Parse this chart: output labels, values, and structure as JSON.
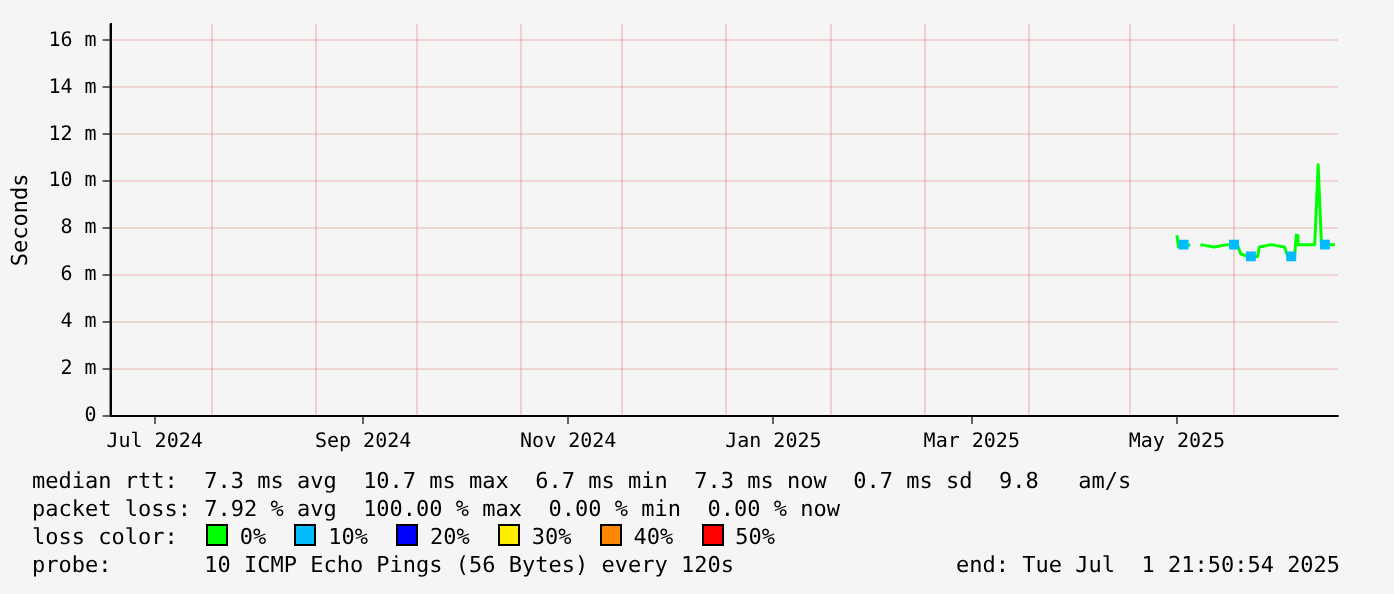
{
  "chart_data": {
    "type": "line",
    "ylabel": "Seconds",
    "legend_title": "loss color:",
    "legend": "bottom",
    "grid": true,
    "marker": "none",
    "line_style": "solid",
    "xlim": [
      "2024-07-01T21:50",
      "2025-07-01T21:50"
    ],
    "xticks": [
      {
        "value": "2024-07-15",
        "label": "Jul 2024"
      },
      {
        "value": "2024-09-15",
        "label": "Sep 2024"
      },
      {
        "value": "2024-11-15",
        "label": "Nov 2024"
      },
      {
        "value": "2025-01-15",
        "label": "Jan 2025"
      },
      {
        "value": "2025-03-15",
        "label": "Mar 2025"
      },
      {
        "value": "2025-05-15",
        "label": "May 2025"
      },
      {
        "value": "2024-08-01",
        "label": null
      },
      {
        "value": "2024-09-01",
        "label": null
      },
      {
        "value": "2024-10-01",
        "label": null
      },
      {
        "value": "2024-11-01",
        "label": null
      },
      {
        "value": "2024-12-01",
        "label": null
      },
      {
        "value": "2025-01-01",
        "label": null
      },
      {
        "value": "2025-02-01",
        "label": null
      },
      {
        "value": "2025-03-01",
        "label": null
      },
      {
        "value": "2025-04-01",
        "label": null
      },
      {
        "value": "2025-05-01",
        "label": null
      },
      {
        "value": "2025-06-01",
        "label": null
      }
    ],
    "ylim": [
      0,
      16.7
    ],
    "yticks": [
      0,
      {
        "value": 2,
        "label": "2 m"
      },
      {
        "value": 4,
        "label": "4 m"
      },
      {
        "value": 6,
        "label": "6 m"
      },
      {
        "value": 8,
        "label": "8 m"
      },
      {
        "value": 10,
        "label": "10 m"
      },
      {
        "value": 12,
        "label": "12 m"
      },
      {
        "value": 14,
        "label": "14 m"
      },
      {
        "value": 16,
        "label": "16 m"
      }
    ],
    "series": [
      {
        "name": "0%",
        "color": "#00ff00",
        "x": [
          "2025-05-15T00:00",
          "2025-05-15T12:00",
          "2025-05-17",
          "2025-05-19",
          "2025-05-20",
          "2025-05-22",
          "2025-05-26",
          "2025-05-30",
          "2025-06-02",
          "2025-06-03",
          "2025-06-05",
          "2025-06-08",
          "2025-06-08T12:00",
          "2025-06-12",
          "2025-06-16",
          "2025-06-17",
          "2025-06-19",
          "2025-06-19T12:00",
          "2025-06-20",
          "2025-06-25",
          "2025-06-26",
          "2025-06-27",
          "2025-07-01"
        ],
        "values": [
          7.7,
          7.2,
          7.2,
          7.3,
          null,
          7.3,
          7.2,
          7.3,
          7.3,
          6.9,
          6.8,
          6.8,
          7.2,
          7.3,
          7.2,
          6.8,
          6.8,
          7.7,
          7.3,
          7.3,
          10.7,
          7.3,
          7.3
        ]
      },
      {
        "name": "10%",
        "color": "#00bbff",
        "type": "scatter",
        "marker": "square",
        "x": [
          "2025-05-17",
          "2025-06-01",
          "2025-06-06",
          "2025-06-18",
          "2025-06-28"
        ],
        "values": [
          7.3,
          7.3,
          6.8,
          6.8,
          7.3
        ]
      },
      {
        "name": "20%",
        "color": "#0000ff"
      },
      {
        "name": "30%",
        "color": "#ffee00"
      },
      {
        "name": "40%",
        "color": "#ff8800"
      },
      {
        "name": "50%",
        "color": "#ff0000"
      }
    ],
    "annotations": [
      "median rtt:  7.3 ms avg  10.7 ms max  6.7 ms min  7.3 ms now  0.7 ms sd  9.8   am/s",
      "packet loss: 7.92 % avg  100.00 % max  0.00 % min  0.00 % now",
      "probe:       10 ICMP Echo Pings (56 Bytes) every 120s",
      "end: Tue Jul  1 21:50:54 2025"
    ]
  }
}
